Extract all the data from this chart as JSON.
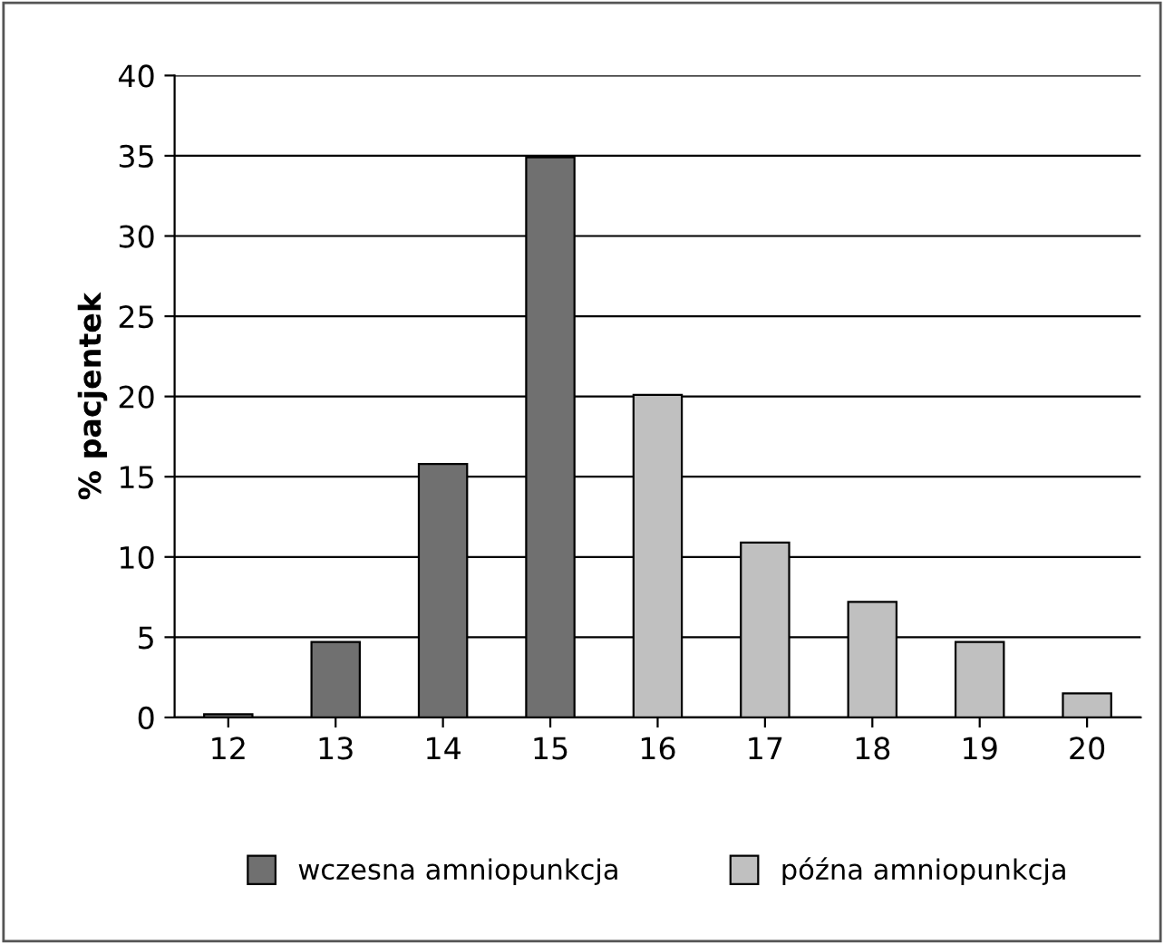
{
  "chart_data": {
    "type": "bar",
    "ylabel": "% pacjentek",
    "categories": [
      "12",
      "13",
      "14",
      "15",
      "16",
      "17",
      "18",
      "19",
      "20"
    ],
    "series": [
      {
        "name": "wczesna amniopunkcja",
        "color": "#707070",
        "values": [
          0.2,
          4.7,
          15.8,
          34.9,
          null,
          null,
          null,
          null,
          null
        ]
      },
      {
        "name": "późna amniopunkcja",
        "color": "#c0c0c0",
        "values": [
          null,
          null,
          null,
          null,
          20.1,
          10.9,
          7.2,
          4.7,
          1.5
        ]
      }
    ],
    "ylim": [
      0,
      40
    ],
    "yticks": [
      0,
      5,
      10,
      15,
      20,
      25,
      30,
      35,
      40
    ],
    "grid": "y",
    "legend": "bottom"
  }
}
